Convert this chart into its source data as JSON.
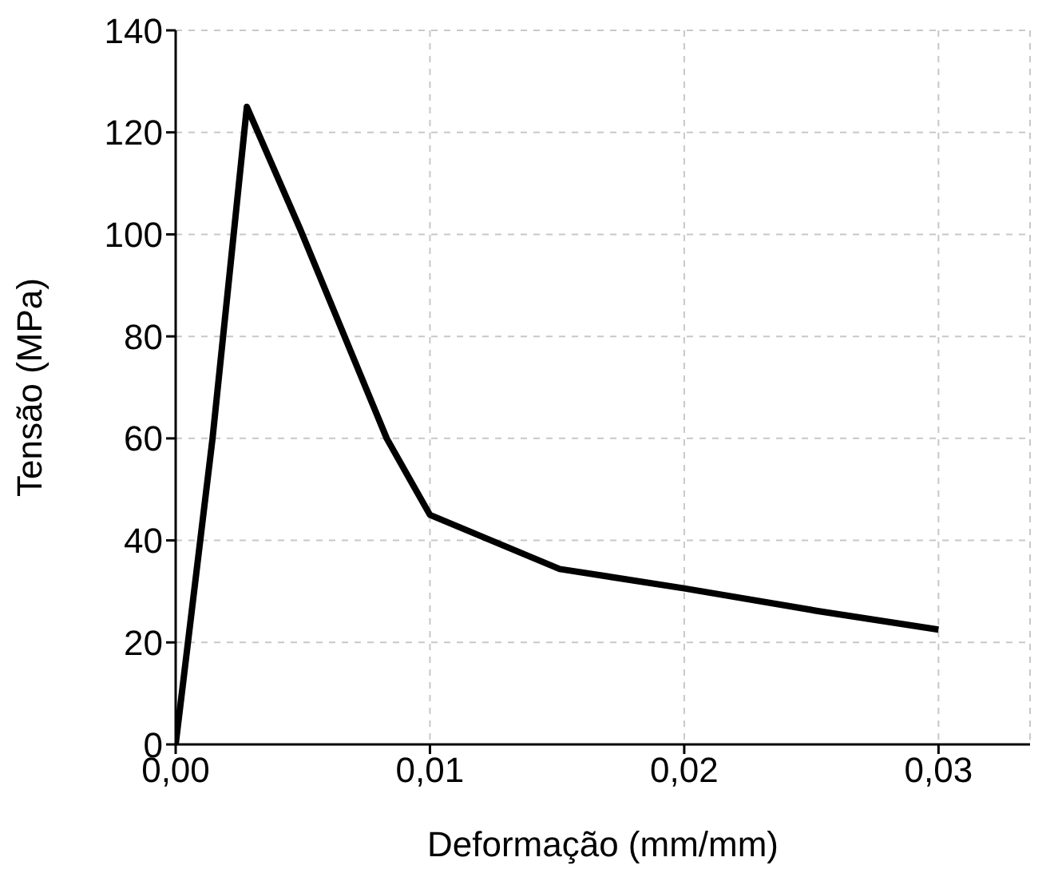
{
  "chart_data": {
    "type": "line",
    "xlabel": "Deformação (mm/mm)",
    "ylabel": "Tensão (MPa)",
    "x": [
      0,
      0.00145,
      0.0028,
      0.0049,
      0.0083,
      0.01,
      0.0151,
      0.02,
      0.0252,
      0.03
    ],
    "series": [
      {
        "color": "#000000",
        "values": [
          0,
          60,
          125,
          101,
          60,
          45,
          34.4,
          30.6,
          26.2,
          22.5
        ]
      }
    ],
    "xlim": [
      0,
      0.0336
    ],
    "xticks": [
      {
        "value": 0,
        "label": "0,00"
      },
      {
        "value": 0.01,
        "label": "0,01"
      },
      {
        "value": 0.02,
        "label": "0,02"
      },
      {
        "value": 0.03,
        "label": "0,03"
      }
    ],
    "ylim": [
      0,
      140
    ],
    "yticks": [
      0,
      20,
      40,
      60,
      80,
      100,
      120,
      140
    ],
    "grid": true,
    "marker": "none",
    "line_style": "solid"
  }
}
